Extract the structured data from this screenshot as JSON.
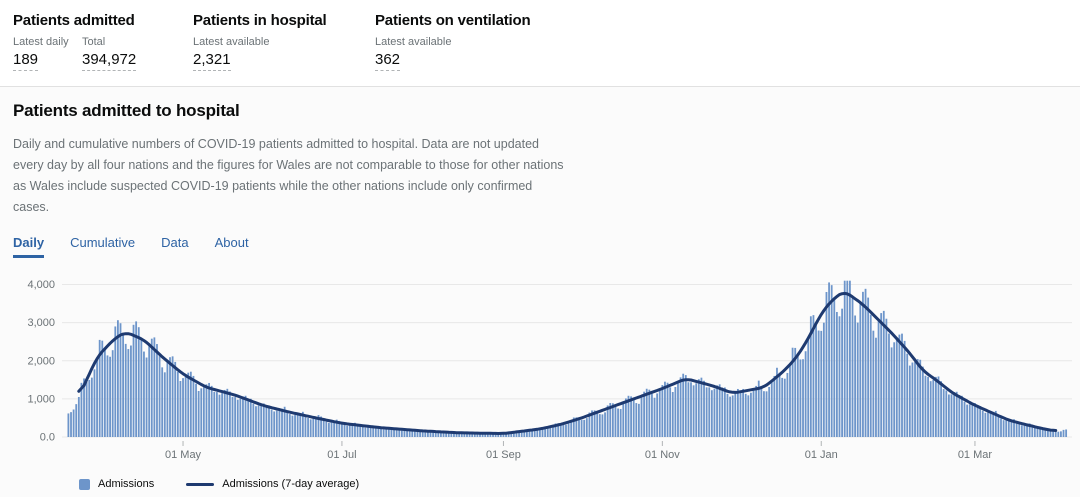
{
  "stats": [
    {
      "title": "Patients admitted",
      "metrics": [
        {
          "label": "Latest daily",
          "value": "189"
        },
        {
          "label": "Total",
          "value": "394,972"
        }
      ]
    },
    {
      "title": "Patients in hospital",
      "metrics": [
        {
          "label": "Latest available",
          "value": "2,321"
        }
      ]
    },
    {
      "title": "Patients on ventilation",
      "metrics": [
        {
          "label": "Latest available",
          "value": "362"
        }
      ]
    }
  ],
  "section": {
    "title": "Patients admitted to hospital",
    "description": "Daily and cumulative numbers of COVID-19 patients admitted to hospital. Data are not updated every day by all four nations and the figures for Wales are not comparable to those for other nations as Wales include suspected COVID-19 patients while the other nations include only confirmed cases."
  },
  "tabs": [
    {
      "label": "Daily",
      "active": true
    },
    {
      "label": "Cumulative",
      "active": false
    },
    {
      "label": "Data",
      "active": false
    },
    {
      "label": "About",
      "active": false
    }
  ],
  "chart_data": {
    "type": "bar",
    "title": "",
    "xlabel": "",
    "ylabel": "",
    "ylim": [
      0,
      4000
    ],
    "y_tick_labels": [
      "0.0",
      "1,000",
      "2,000",
      "3,000",
      "4,000"
    ],
    "y_tick_values": [
      0,
      1000,
      2000,
      3000,
      4000
    ],
    "x_tick_labels": [
      "01 May",
      "01 Jul",
      "01 Sep",
      "01 Nov",
      "01 Jan",
      "01 Mar"
    ],
    "x_tick_days": [
      46,
      107,
      169,
      230,
      291,
      350
    ],
    "grid": true,
    "legend_position": "bottom",
    "colors": {
      "bar": "#6d95ca",
      "line": "#1e3a70",
      "grid": "#e8e8e8",
      "tick": "#b1b4b6",
      "axis_text": "#6b7276"
    },
    "series": [
      {
        "name": "Admissions",
        "type": "bar",
        "day_range": [
          2,
          385
        ],
        "weekly_amplitude": 0.12,
        "jitter_amplitude": 0.06,
        "max_daily": 4100
      },
      {
        "name": "Admissions (7-day average)",
        "type": "line",
        "day_range": [
          6,
          381
        ],
        "control_points": [
          [
            2,
            600
          ],
          [
            6,
            1050
          ],
          [
            13,
            2100
          ],
          [
            20,
            2600
          ],
          [
            24,
            2750
          ],
          [
            31,
            2550
          ],
          [
            38,
            2100
          ],
          [
            46,
            1650
          ],
          [
            55,
            1300
          ],
          [
            66,
            1100
          ],
          [
            77,
            820
          ],
          [
            87,
            650
          ],
          [
            97,
            500
          ],
          [
            107,
            360
          ],
          [
            121,
            250
          ],
          [
            138,
            160
          ],
          [
            152,
            110
          ],
          [
            169,
            90
          ],
          [
            183,
            210
          ],
          [
            191,
            330
          ],
          [
            199,
            500
          ],
          [
            213,
            850
          ],
          [
            230,
            1270
          ],
          [
            239,
            1530
          ],
          [
            249,
            1350
          ],
          [
            257,
            1150
          ],
          [
            269,
            1300
          ],
          [
            277,
            1750
          ],
          [
            282,
            2130
          ],
          [
            287,
            2700
          ],
          [
            291,
            3250
          ],
          [
            296,
            3650
          ],
          [
            300,
            3820
          ],
          [
            307,
            3480
          ],
          [
            314,
            3000
          ],
          [
            318,
            2730
          ],
          [
            325,
            2200
          ],
          [
            330,
            1740
          ],
          [
            336,
            1450
          ],
          [
            341,
            1170
          ],
          [
            350,
            830
          ],
          [
            357,
            620
          ],
          [
            363,
            440
          ],
          [
            371,
            300
          ],
          [
            378,
            190
          ],
          [
            381,
            160
          ],
          [
            385,
            170
          ]
        ]
      }
    ],
    "legend": [
      {
        "label": "Admissions",
        "swatch": "square"
      },
      {
        "label": "Admissions (7-day average)",
        "swatch": "line"
      }
    ]
  }
}
